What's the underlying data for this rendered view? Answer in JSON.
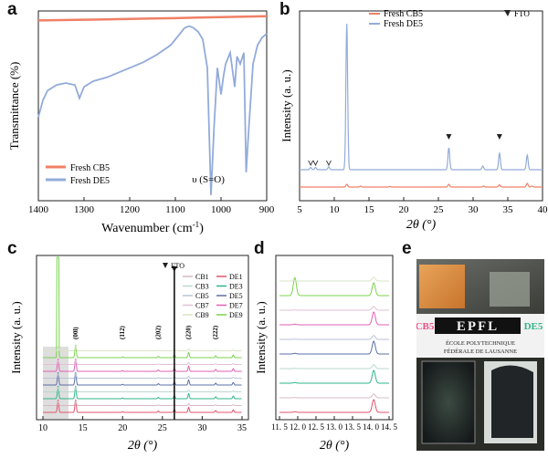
{
  "chart_data": [
    {
      "panel": "a",
      "type": "line",
      "xlabel": "Wavenumber (cm",
      "xlabel_sup": "-1",
      "xlabel_end": ")",
      "ylabel": "Transmittance (%)",
      "xlim": [
        1400,
        900
      ],
      "ticks": [
        "1400",
        "1300",
        "1200",
        "1100",
        "1000",
        "900"
      ],
      "annotation": "υ (S=O)",
      "legend_position": "bottom-left",
      "series": [
        {
          "name": "Fresh CB5",
          "color": "#f08066",
          "points": [
            [
              1400,
              95
            ],
            [
              1350,
              95.2
            ],
            [
              1300,
              95.4
            ],
            [
              1250,
              95.6
            ],
            [
              1200,
              95.8
            ],
            [
              1150,
              96
            ],
            [
              1100,
              96.2
            ],
            [
              1050,
              96.5
            ],
            [
              1000,
              96.8
            ],
            [
              950,
              97
            ],
            [
              900,
              97.2
            ]
          ]
        },
        {
          "name": "Fresh DE5",
          "color": "#93abda",
          "points": [
            [
              1400,
              44
            ],
            [
              1390,
              53
            ],
            [
              1380,
              58
            ],
            [
              1360,
              61
            ],
            [
              1340,
              62
            ],
            [
              1320,
              61
            ],
            [
              1310,
              54
            ],
            [
              1300,
              60
            ],
            [
              1280,
              63
            ],
            [
              1250,
              65
            ],
            [
              1220,
              68
            ],
            [
              1200,
              70
            ],
            [
              1170,
              73
            ],
            [
              1140,
              77
            ],
            [
              1110,
              82
            ],
            [
              1090,
              88
            ],
            [
              1080,
              91
            ],
            [
              1070,
              92
            ],
            [
              1060,
              91
            ],
            [
              1050,
              89
            ],
            [
              1040,
              85
            ],
            [
              1030,
              70
            ],
            [
              1022,
              3
            ],
            [
              1015,
              40
            ],
            [
              1008,
              70
            ],
            [
              1000,
              56
            ],
            [
              995,
              65
            ],
            [
              990,
              72
            ],
            [
              980,
              78
            ],
            [
              970,
              60
            ],
            [
              965,
              76
            ],
            [
              958,
              72
            ],
            [
              950,
              78
            ],
            [
              945,
              15
            ],
            [
              940,
              35
            ],
            [
              930,
              72
            ],
            [
              920,
              82
            ],
            [
              910,
              86
            ],
            [
              900,
              88
            ]
          ]
        }
      ]
    },
    {
      "panel": "b",
      "type": "line",
      "xlabel": "2θ (°)",
      "ylabel": "Intensity (a. u.)",
      "xlim": [
        5,
        40
      ],
      "ticks": [
        "5",
        "10",
        "15",
        "20",
        "25",
        "30",
        "35",
        "40"
      ],
      "legend_position": "top",
      "marker_label": "FTO",
      "peak_markers": [
        6.6,
        7.3,
        9.2,
        26.5,
        33.8
      ],
      "series": [
        {
          "name": "Fresh CB5",
          "color": "#f08066",
          "peaks": [
            [
              11.8,
              3
            ],
            [
              13.8,
              1
            ],
            [
              18,
              0.6
            ],
            [
              26.5,
              3
            ],
            [
              31.5,
              1
            ],
            [
              33.8,
              2.5
            ],
            [
              37.8,
              4
            ],
            [
              38.5,
              1
            ]
          ]
        },
        {
          "name": "Fresh DE5",
          "color": "#93abda",
          "peaks": [
            [
              6.6,
              0.6
            ],
            [
              7.3,
              0.6
            ],
            [
              9.2,
              0.8
            ],
            [
              11.8,
              40
            ],
            [
              26.5,
              6
            ],
            [
              31.4,
              1
            ],
            [
              33.8,
              4.5
            ],
            [
              37.8,
              4
            ]
          ]
        }
      ]
    },
    {
      "panel": "c",
      "type": "line",
      "xlabel": "2θ (°)",
      "ylabel": "Intensity (a. u.)",
      "xlim": [
        10,
        35
      ],
      "ticks": [
        "10",
        "15",
        "20",
        "25",
        "30",
        "35"
      ],
      "marker_label": "FTO",
      "hkl_labels": [
        "(00l)",
        "(112)",
        "(202)",
        "(220)",
        "(222)"
      ],
      "legend": [
        {
          "name": "CB1",
          "color": "#d9b8c4"
        },
        {
          "name": "DE1",
          "color": "#e0546b"
        },
        {
          "name": "CB3",
          "color": "#b8d8ce"
        },
        {
          "name": "DE3",
          "color": "#2fb58a"
        },
        {
          "name": "CB5",
          "color": "#b9c2d6"
        },
        {
          "name": "DE5",
          "color": "#5b6fa8"
        },
        {
          "name": "CB7",
          "color": "#e2c0d6"
        },
        {
          "name": "DE7",
          "color": "#e25fb6"
        },
        {
          "name": "CB9",
          "color": "#d8e6c4"
        },
        {
          "name": "DE9",
          "color": "#7bd34e"
        }
      ]
    },
    {
      "panel": "d",
      "type": "line",
      "xlabel": "2θ (°)",
      "ylabel": "Intensity (a. u.)",
      "xlim": [
        11.5,
        14.5
      ],
      "ticks": [
        "11. 5",
        "12. 0",
        "12. 5",
        "13. 0",
        "13. 5",
        "14. 0",
        "14. 5"
      ]
    }
  ],
  "labels": {
    "a": "a",
    "b": "b",
    "c": "c",
    "d": "d",
    "e": "e"
  },
  "photo": {
    "left_label": "CB5",
    "right_label": "DE5",
    "logo": "EPFL",
    "school_line1": "ÉCOLE POLYTECHNIQUE",
    "school_line2": "FÉDÉRALE DE LAUSANNE"
  }
}
